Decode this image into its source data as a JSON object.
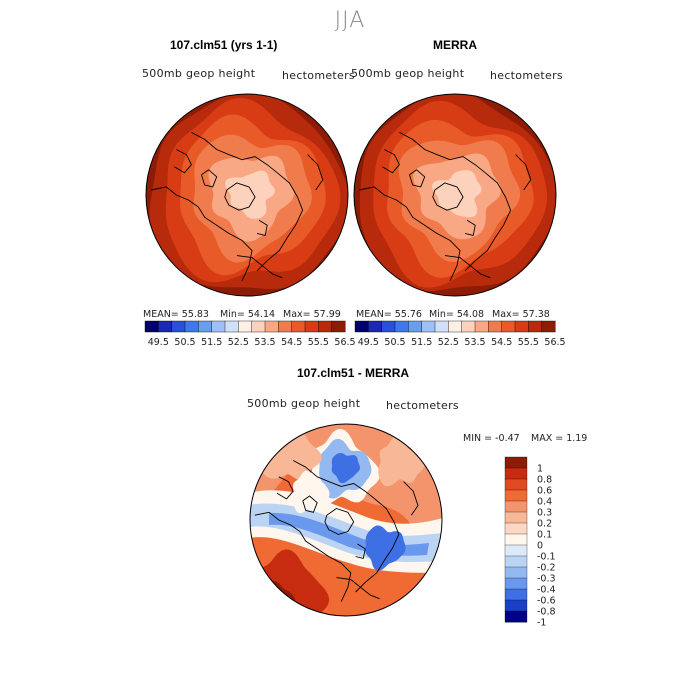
{
  "season": "JJA",
  "chart_data": [
    {
      "type": "heatmap",
      "panel_title": "107.clm51 (yrs 1-1)",
      "variable_label": "500mb geop height",
      "units_label": "hectometers",
      "stats_text": {
        "mean": "MEAN=   55.83",
        "min": "Min=   54.14",
        "max": "Max=   57.99"
      },
      "colorbar_ticks": [
        "49.5",
        "50.5",
        "51.5",
        "52.5",
        "53.5",
        "54.5",
        "55.5",
        "56.5"
      ]
    },
    {
      "type": "heatmap",
      "panel_title": "MERRA",
      "variable_label": "500mb geop height",
      "units_label": "hectometers",
      "stats_text": {
        "mean": "MEAN=   55.76",
        "min": "Min=   54.08",
        "max": "Max=   57.38"
      },
      "colorbar_ticks": [
        "49.5",
        "50.5",
        "51.5",
        "52.5",
        "53.5",
        "54.5",
        "55.5",
        "56.5"
      ]
    },
    {
      "type": "heatmap",
      "panel_title": "107.clm51 - MERRA",
      "variable_label": "500mb geop height",
      "units_label": "hectometers",
      "stats_text": {
        "min": "MIN =   -0.47",
        "max": "MAX =    1.19"
      },
      "colorbar_ticks": [
        "1",
        "0.8",
        "0.6",
        "0.4",
        "0.3",
        "0.2",
        "0.1",
        "0",
        "-0.1",
        "-0.2",
        "-0.3",
        "-0.4",
        "-0.6",
        "-0.8",
        "-1"
      ]
    }
  ],
  "colors": {
    "abs_scale": [
      "#00006e",
      "#1a28b4",
      "#2a50d8",
      "#3e78ec",
      "#6a9cf0",
      "#9ec0f4",
      "#d0e0f8",
      "#fff0e6",
      "#fcd2bc",
      "#f8a884",
      "#f07c4e",
      "#e85a28",
      "#d83c14",
      "#b82a0c",
      "#8c1c06"
    ],
    "diff_scale": [
      "#8c1c06",
      "#c82c10",
      "#e04a20",
      "#f06a34",
      "#f4946c",
      "#f8b898",
      "#fcd8c4",
      "#fff6ee",
      "#ddeaf8",
      "#bcd4f4",
      "#94b8f0",
      "#6a98ec",
      "#3e70e4",
      "#1a40c8",
      "#00008c"
    ]
  }
}
